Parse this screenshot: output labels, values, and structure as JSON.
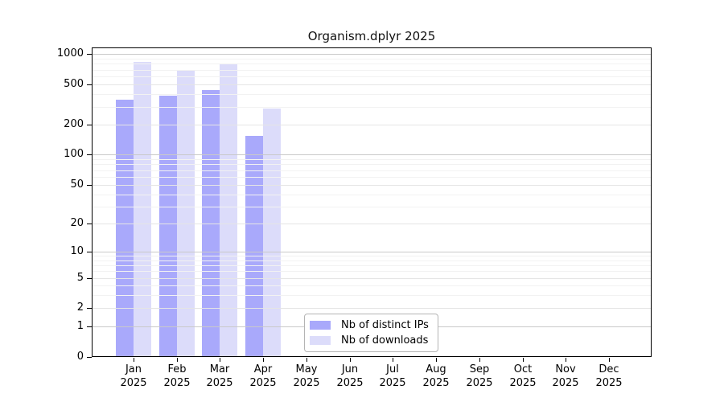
{
  "title": "Organism.dplyr 2025",
  "chart_data": {
    "type": "bar",
    "title": "Organism.dplyr 2025",
    "categories": [
      "Jan",
      "Feb",
      "Mar",
      "Apr",
      "May",
      "Jun",
      "Jul",
      "Aug",
      "Sep",
      "Oct",
      "Nov",
      "Dec"
    ],
    "x_tick_second_line": "2025",
    "series": [
      {
        "name": "Nb of distinct IPs",
        "color": "#a9a9fb",
        "values": [
          350,
          390,
          440,
          155,
          null,
          null,
          null,
          null,
          null,
          null,
          null,
          null
        ]
      },
      {
        "name": "Nb of downloads",
        "color": "#dcdcfa",
        "values": [
          830,
          700,
          800,
          290,
          null,
          null,
          null,
          null,
          null,
          null,
          null,
          null
        ]
      }
    ],
    "y_ticks": [
      0,
      1,
      2,
      5,
      10,
      20,
      50,
      100,
      200,
      500,
      1000
    ],
    "y_axis_scale": "log-like (0 baseline then log decades)",
    "ylim": [
      0,
      1000
    ],
    "grid": true,
    "legend_position": "lower center inside plot"
  },
  "colors": {
    "background": "#ffffff",
    "axis": "#000000",
    "grid_major": "#c9c9c9",
    "grid_mid": "#e5e5e5",
    "grid_minor": "#f2f2f2",
    "legend_border": "#b4b4b4"
  }
}
